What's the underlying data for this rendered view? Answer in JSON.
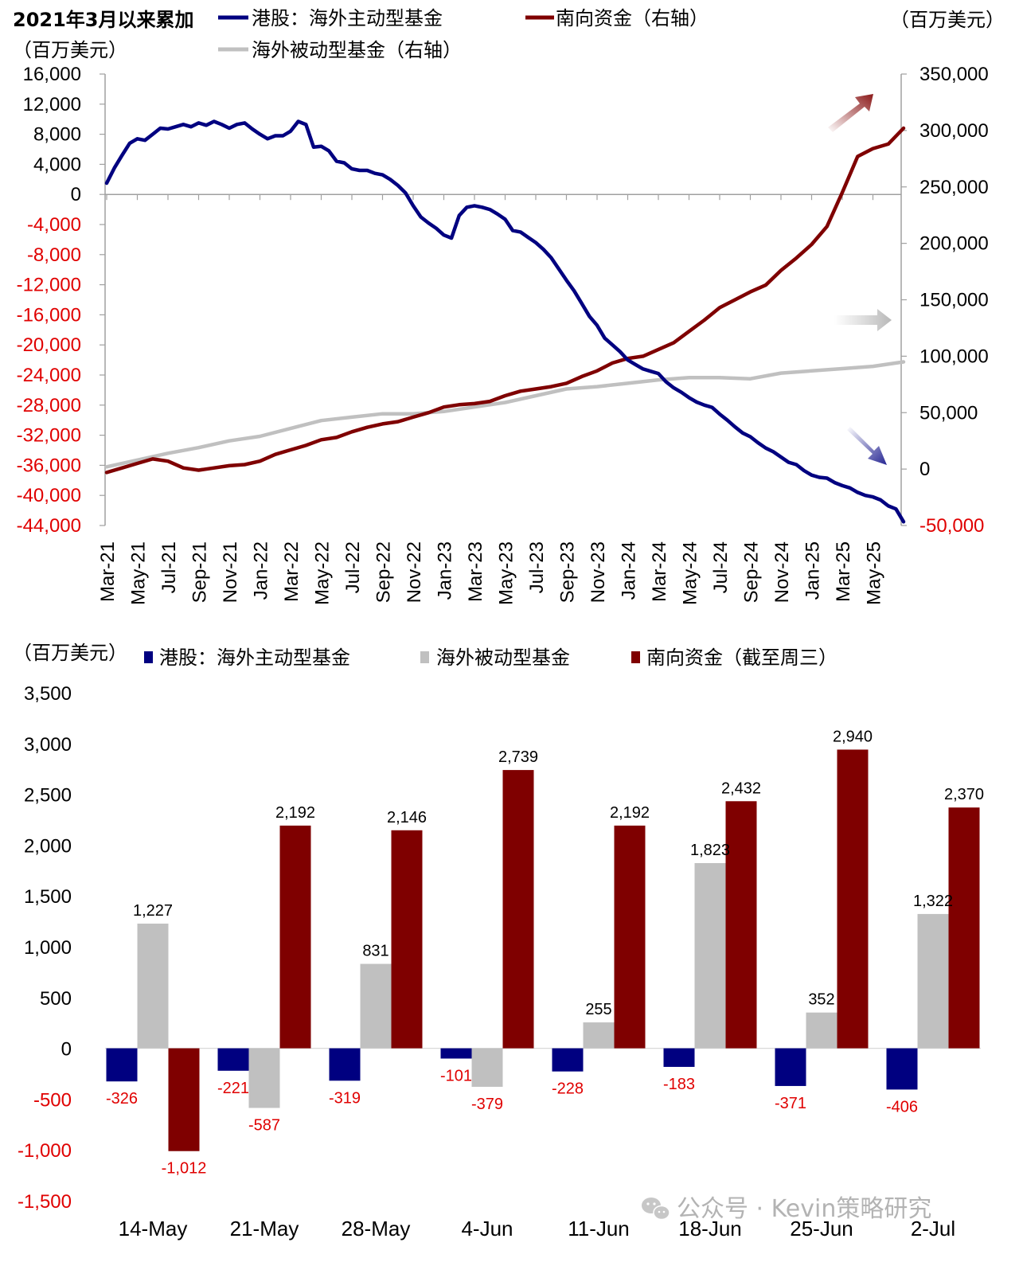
{
  "colors": {
    "active_fund": "#000080",
    "passive_fund": "#C0C0C0",
    "southbound": "#7F0000",
    "negative_label": "#E00000",
    "axis": "#A0A0A0",
    "text": "#000000"
  },
  "watermark": "公众号 · Kevin策略研究",
  "chart_data": [
    {
      "type": "line",
      "title": "2021年3月以来累加",
      "left_unit": "（百万美元）",
      "right_unit": "（百万美元）",
      "legend": [
        {
          "name": "港股：海外主动型基金",
          "color": "#000080",
          "axis": "left"
        },
        {
          "name": "南向资金（右轴）",
          "color": "#7F0000",
          "axis": "right"
        },
        {
          "name": "海外被动型基金（右轴）",
          "color": "#C0C0C0",
          "axis": "right"
        }
      ],
      "legend_placement": "top",
      "left_axis": {
        "ylim": [
          -44000,
          16000
        ],
        "ticks": [
          16000,
          12000,
          8000,
          4000,
          0,
          -4000,
          -8000,
          -12000,
          -16000,
          -20000,
          -24000,
          -28000,
          -32000,
          -36000,
          -40000,
          -44000
        ],
        "tick_labels": [
          "16,000",
          "12,000",
          "8,000",
          "4,000",
          "0",
          "-4,000",
          "-8,000",
          "-12,000",
          "-16,000",
          "-20,000",
          "-24,000",
          "-28,000",
          "-32,000",
          "-36,000",
          "-40,000",
          "-44,000"
        ]
      },
      "right_axis": {
        "ylim": [
          -50000,
          350000
        ],
        "ticks": [
          350000,
          300000,
          250000,
          200000,
          150000,
          100000,
          50000,
          0,
          -50000
        ],
        "tick_labels": [
          "350,000",
          "300,000",
          "250,000",
          "200,000",
          "150,000",
          "100,000",
          "50,000",
          "0",
          "-50,000"
        ]
      },
      "x_tick_labels": [
        "Mar-21",
        "May-21",
        "Jul-21",
        "Sep-21",
        "Nov-21",
        "Jan-22",
        "Mar-22",
        "May-22",
        "Jul-22",
        "Sep-22",
        "Nov-22",
        "Jan-23",
        "Mar-23",
        "May-23",
        "Jul-23",
        "Sep-23",
        "Nov-23",
        "Jan-24",
        "Mar-24",
        "May-24",
        "Jul-24",
        "Sep-24",
        "Nov-24",
        "Jan-25",
        "Mar-25",
        "May-25"
      ],
      "x_range_months": [
        0,
        52
      ],
      "series": [
        {
          "name": "港股：海外主动型基金",
          "axis": "left",
          "x_month": [
            0,
            0.5,
            1,
            1.5,
            2,
            2.5,
            3,
            3.5,
            4,
            4.5,
            5,
            5.5,
            6,
            6.5,
            7,
            7.5,
            8,
            8.5,
            9,
            9.5,
            10,
            10.5,
            11,
            11.5,
            12,
            12.5,
            13,
            13.5,
            14,
            14.5,
            15,
            15.5,
            16,
            16.5,
            17,
            17.5,
            18,
            18.5,
            19,
            19.5,
            20,
            20.5,
            21,
            21.5,
            22,
            22.5,
            23,
            23.5,
            24,
            24.5,
            25,
            25.5,
            26,
            26.5,
            27,
            27.5,
            28,
            28.5,
            29,
            29.5,
            30,
            30.5,
            31,
            31.5,
            32,
            32.5,
            33,
            33.5,
            34,
            34.5,
            35,
            35.5,
            36,
            36.5,
            37,
            37.5,
            38,
            38.5,
            39,
            39.5,
            40,
            40.5,
            41,
            41.5,
            42,
            42.5,
            43,
            43.5,
            44,
            44.5,
            45,
            45.5,
            46,
            46.5,
            47,
            47.5,
            48,
            48.5,
            49,
            49.5,
            50,
            50.5,
            51,
            51.5,
            52
          ],
          "values": [
            1500,
            3500,
            5200,
            6800,
            7400,
            7200,
            8000,
            8800,
            8700,
            9000,
            9300,
            9000,
            9500,
            9200,
            9700,
            9300,
            8800,
            9300,
            9500,
            8700,
            8000,
            7400,
            7800,
            7800,
            8400,
            9700,
            9300,
            6300,
            6400,
            5800,
            4400,
            4200,
            3400,
            3200,
            3200,
            2800,
            2600,
            2000,
            1200,
            200,
            -1500,
            -3000,
            -3800,
            -4500,
            -5400,
            -5800,
            -2800,
            -1700,
            -1500,
            -1700,
            -2000,
            -2600,
            -3300,
            -4800,
            -5000,
            -5700,
            -6400,
            -7300,
            -8400,
            -9900,
            -11400,
            -12800,
            -14500,
            -16200,
            -17400,
            -19100,
            -20000,
            -20900,
            -22000,
            -22600,
            -23200,
            -23500,
            -23800,
            -24900,
            -25700,
            -26300,
            -27000,
            -27600,
            -28000,
            -28300,
            -29200,
            -30000,
            -30900,
            -31700,
            -32200,
            -33000,
            -33700,
            -34200,
            -34900,
            -35600,
            -35900,
            -36700,
            -37300,
            -37600,
            -37700,
            -38300,
            -38700,
            -39000,
            -39600,
            -40000,
            -40200,
            -40600,
            -41400,
            -41800,
            -43500
          ]
        },
        {
          "name": "南向资金（右轴）",
          "axis": "right",
          "x_month": [
            0,
            1,
            2,
            3,
            4,
            5,
            6,
            7,
            8,
            9,
            10,
            11,
            12,
            13,
            14,
            15,
            16,
            17,
            18,
            19,
            20,
            21,
            22,
            23,
            24,
            25,
            26,
            27,
            28,
            29,
            30,
            31,
            32,
            33,
            34,
            35,
            36,
            37,
            38,
            39,
            40,
            41,
            42,
            43,
            44,
            45,
            46,
            47,
            48,
            49,
            50,
            51,
            52
          ],
          "values": [
            -3000,
            1000,
            5000,
            9000,
            7000,
            1000,
            -1000,
            1000,
            3000,
            4000,
            7000,
            13000,
            17000,
            21000,
            26000,
            28000,
            33000,
            37000,
            40000,
            42000,
            46000,
            50000,
            55000,
            57000,
            58000,
            60000,
            65000,
            69000,
            71000,
            73000,
            76000,
            82000,
            87000,
            94000,
            98000,
            100000,
            106000,
            112000,
            122000,
            132000,
            143000,
            150000,
            157000,
            163000,
            176000,
            187000,
            199000,
            215000,
            245000,
            277000,
            284000,
            288000,
            302000
          ]
        },
        {
          "name": "海外被动型基金（右轴）",
          "axis": "right",
          "x_month": [
            0,
            2,
            4,
            6,
            8,
            10,
            12,
            14,
            16,
            18,
            20,
            22,
            24,
            26,
            28,
            30,
            32,
            34,
            36,
            38,
            40,
            42,
            44,
            46,
            48,
            50,
            52
          ],
          "values": [
            2000,
            8000,
            14000,
            19000,
            25000,
            29000,
            36000,
            43000,
            46000,
            49000,
            49000,
            51000,
            55000,
            59000,
            65000,
            71000,
            73000,
            76000,
            79000,
            81000,
            81000,
            80000,
            85000,
            87000,
            89000,
            91000,
            95000
          ]
        }
      ],
      "annotations": [
        {
          "type": "arrow",
          "direction": "up-right",
          "series": "南向资金（右轴）",
          "color": "#7F0000"
        },
        {
          "type": "arrow",
          "direction": "right",
          "series": "海外被动型基金（右轴）",
          "color": "#C0C0C0"
        },
        {
          "type": "arrow",
          "direction": "down-right",
          "series": "港股：海外主动型基金",
          "color": "#000080"
        }
      ],
      "grid": false
    },
    {
      "type": "bar",
      "title": "",
      "unit": "（百万美元）",
      "legend": [
        {
          "name": "港股：海外主动型基金",
          "color": "#000080"
        },
        {
          "name": "海外被动型基金",
          "color": "#C0C0C0"
        },
        {
          "name": "南向资金（截至周三）",
          "color": "#7F0000"
        }
      ],
      "legend_placement": "top",
      "categories": [
        "14-May",
        "21-May",
        "28-May",
        "4-Jun",
        "11-Jun",
        "18-Jun",
        "25-Jun",
        "2-Jul"
      ],
      "series": [
        {
          "name": "港股：海外主动型基金",
          "values": [
            -326,
            -221,
            -319,
            -101,
            -228,
            -183,
            -371,
            -406
          ],
          "labels": [
            "-326",
            "-221",
            "-319",
            "-101",
            "-228",
            "-183",
            "-371",
            "-406"
          ]
        },
        {
          "name": "海外被动型基金",
          "values": [
            1227,
            -587,
            831,
            -379,
            255,
            1823,
            352,
            1322
          ],
          "labels": [
            "1,227",
            "-587",
            "831",
            "-379",
            "255",
            "1,823",
            "352",
            "1,322"
          ]
        },
        {
          "name": "南向资金（截至周三）",
          "values": [
            -1012,
            2192,
            2146,
            2739,
            2192,
            2432,
            2940,
            2370
          ],
          "labels": [
            "-1,012",
            "2,192",
            "2,146",
            "2,739",
            "2,192",
            "2,432",
            "2,940",
            "2,370"
          ]
        }
      ],
      "ylim": [
        -1500,
        3500
      ],
      "y_ticks": [
        3500,
        3000,
        2500,
        2000,
        1500,
        1000,
        500,
        0,
        -500,
        -1000,
        -1500
      ],
      "y_tick_labels": [
        "3,500",
        "3,000",
        "2,500",
        "2,000",
        "1,500",
        "1,000",
        "500",
        "0",
        "-500",
        "-1,000",
        "-1,500"
      ],
      "xlabel": "",
      "ylabel": "",
      "grid": false
    }
  ]
}
